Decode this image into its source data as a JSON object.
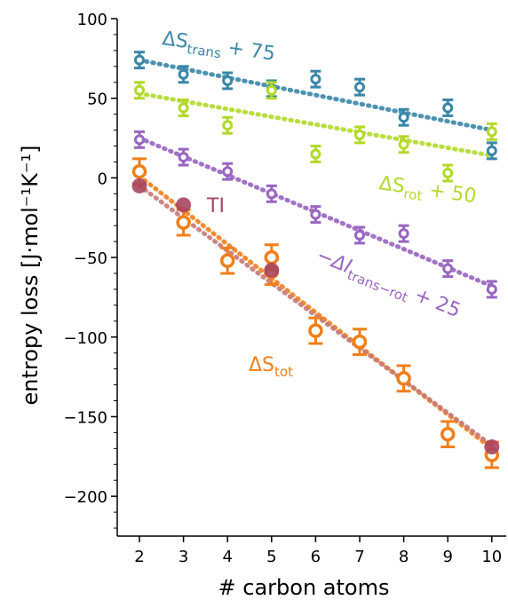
{
  "chart_data": {
    "type": "scatter",
    "xlabel": "# carbon atoms",
    "ylabel": "entropy loss [J·mol⁻¹K⁻¹]",
    "xlim": [
      1.5,
      10.35
    ],
    "ylim": [
      -225,
      100
    ],
    "xticks": [
      2,
      3,
      4,
      5,
      6,
      7,
      8,
      9,
      10
    ],
    "yticks": [
      100,
      50,
      0,
      -50,
      -100,
      -150,
      -200
    ],
    "ytick_labels": [
      "100",
      "50",
      "0",
      "−50",
      "−100",
      "−150",
      "−200"
    ],
    "grid": false,
    "series": [
      {
        "name": "ΔS_trans + 75",
        "color": "#3a87a9",
        "marker": "square-open",
        "x": [
          2,
          3,
          4,
          5,
          6,
          7,
          8,
          9,
          10
        ],
        "y": [
          74,
          65,
          61,
          56,
          62,
          57,
          38,
          44,
          17
        ],
        "err": [
          5,
          5,
          5,
          5,
          5,
          5,
          5,
          5,
          5
        ],
        "fit_line": [
          [
            2,
            74
          ],
          [
            10,
            30
          ]
        ]
      },
      {
        "name": "ΔS_rot + 50",
        "color": "#b3d92b",
        "marker": "square-open",
        "x": [
          2,
          3,
          4,
          5,
          6,
          7,
          8,
          9,
          10
        ],
        "y": [
          55,
          44,
          33,
          55,
          15,
          27,
          21,
          3,
          29
        ],
        "err": [
          5,
          5,
          5,
          5,
          5,
          5,
          5,
          5,
          5
        ],
        "fit_line": [
          [
            2,
            53
          ],
          [
            10,
            14
          ]
        ]
      },
      {
        "name": "−ΔI_trans−rot + 25",
        "color": "#9966c2",
        "marker": "square-open",
        "x": [
          2,
          3,
          4,
          5,
          6,
          7,
          8,
          9,
          10
        ],
        "y": [
          24,
          13,
          4,
          -10,
          -23,
          -36,
          -35,
          -57,
          -70
        ],
        "err": [
          5,
          5,
          5,
          5,
          5,
          5,
          5,
          5,
          5
        ],
        "fit_line": [
          [
            2,
            25
          ],
          [
            10,
            -68
          ]
        ]
      },
      {
        "name": "ΔS_tot",
        "color": "#f07f1a",
        "marker": "circle-open",
        "x": [
          2,
          3,
          4,
          5,
          5,
          6,
          7,
          8,
          9,
          10
        ],
        "y": [
          4,
          -28,
          -52,
          -59,
          -50,
          -96,
          -103,
          -126,
          -161,
          -174
        ],
        "err": [
          8,
          8,
          8,
          8,
          8,
          8,
          8,
          8,
          8,
          8
        ],
        "fit_lines": [
          {
            "color": "#f07f1a",
            "points": [
              [
                2,
                1
              ],
              [
                10,
                -170
              ]
            ]
          },
          {
            "color": "#c77a77",
            "points": [
              [
                2,
                -5
              ],
              [
                10,
                -168
              ]
            ]
          }
        ]
      },
      {
        "name": "TI",
        "color": "#a8455f",
        "marker": "circle-filled",
        "x": [
          2,
          3,
          5,
          10
        ],
        "y": [
          -5,
          -17,
          -58,
          -169
        ]
      }
    ],
    "annotations": [
      {
        "id": "trans",
        "main": "ΔS",
        "sub": "trans",
        "after": " + 75",
        "color": "#3a87a9",
        "rotate": 8
      },
      {
        "id": "rot",
        "main": "ΔS",
        "sub": "rot",
        "after": " + 50",
        "color": "#b3d92b",
        "rotate": 8
      },
      {
        "id": "info",
        "main": "−ΔI",
        "sub": "trans−rot",
        "after": " + 25",
        "color": "#9966c2",
        "rotate": 22,
        "italic": true
      },
      {
        "id": "tot",
        "main": "ΔS",
        "sub": "tot",
        "after": "",
        "color": "#f07f1a",
        "rotate": 0
      },
      {
        "id": "ti",
        "main": "TI",
        "sub": "",
        "after": "",
        "color": "#a8455f",
        "rotate": 0
      }
    ]
  }
}
